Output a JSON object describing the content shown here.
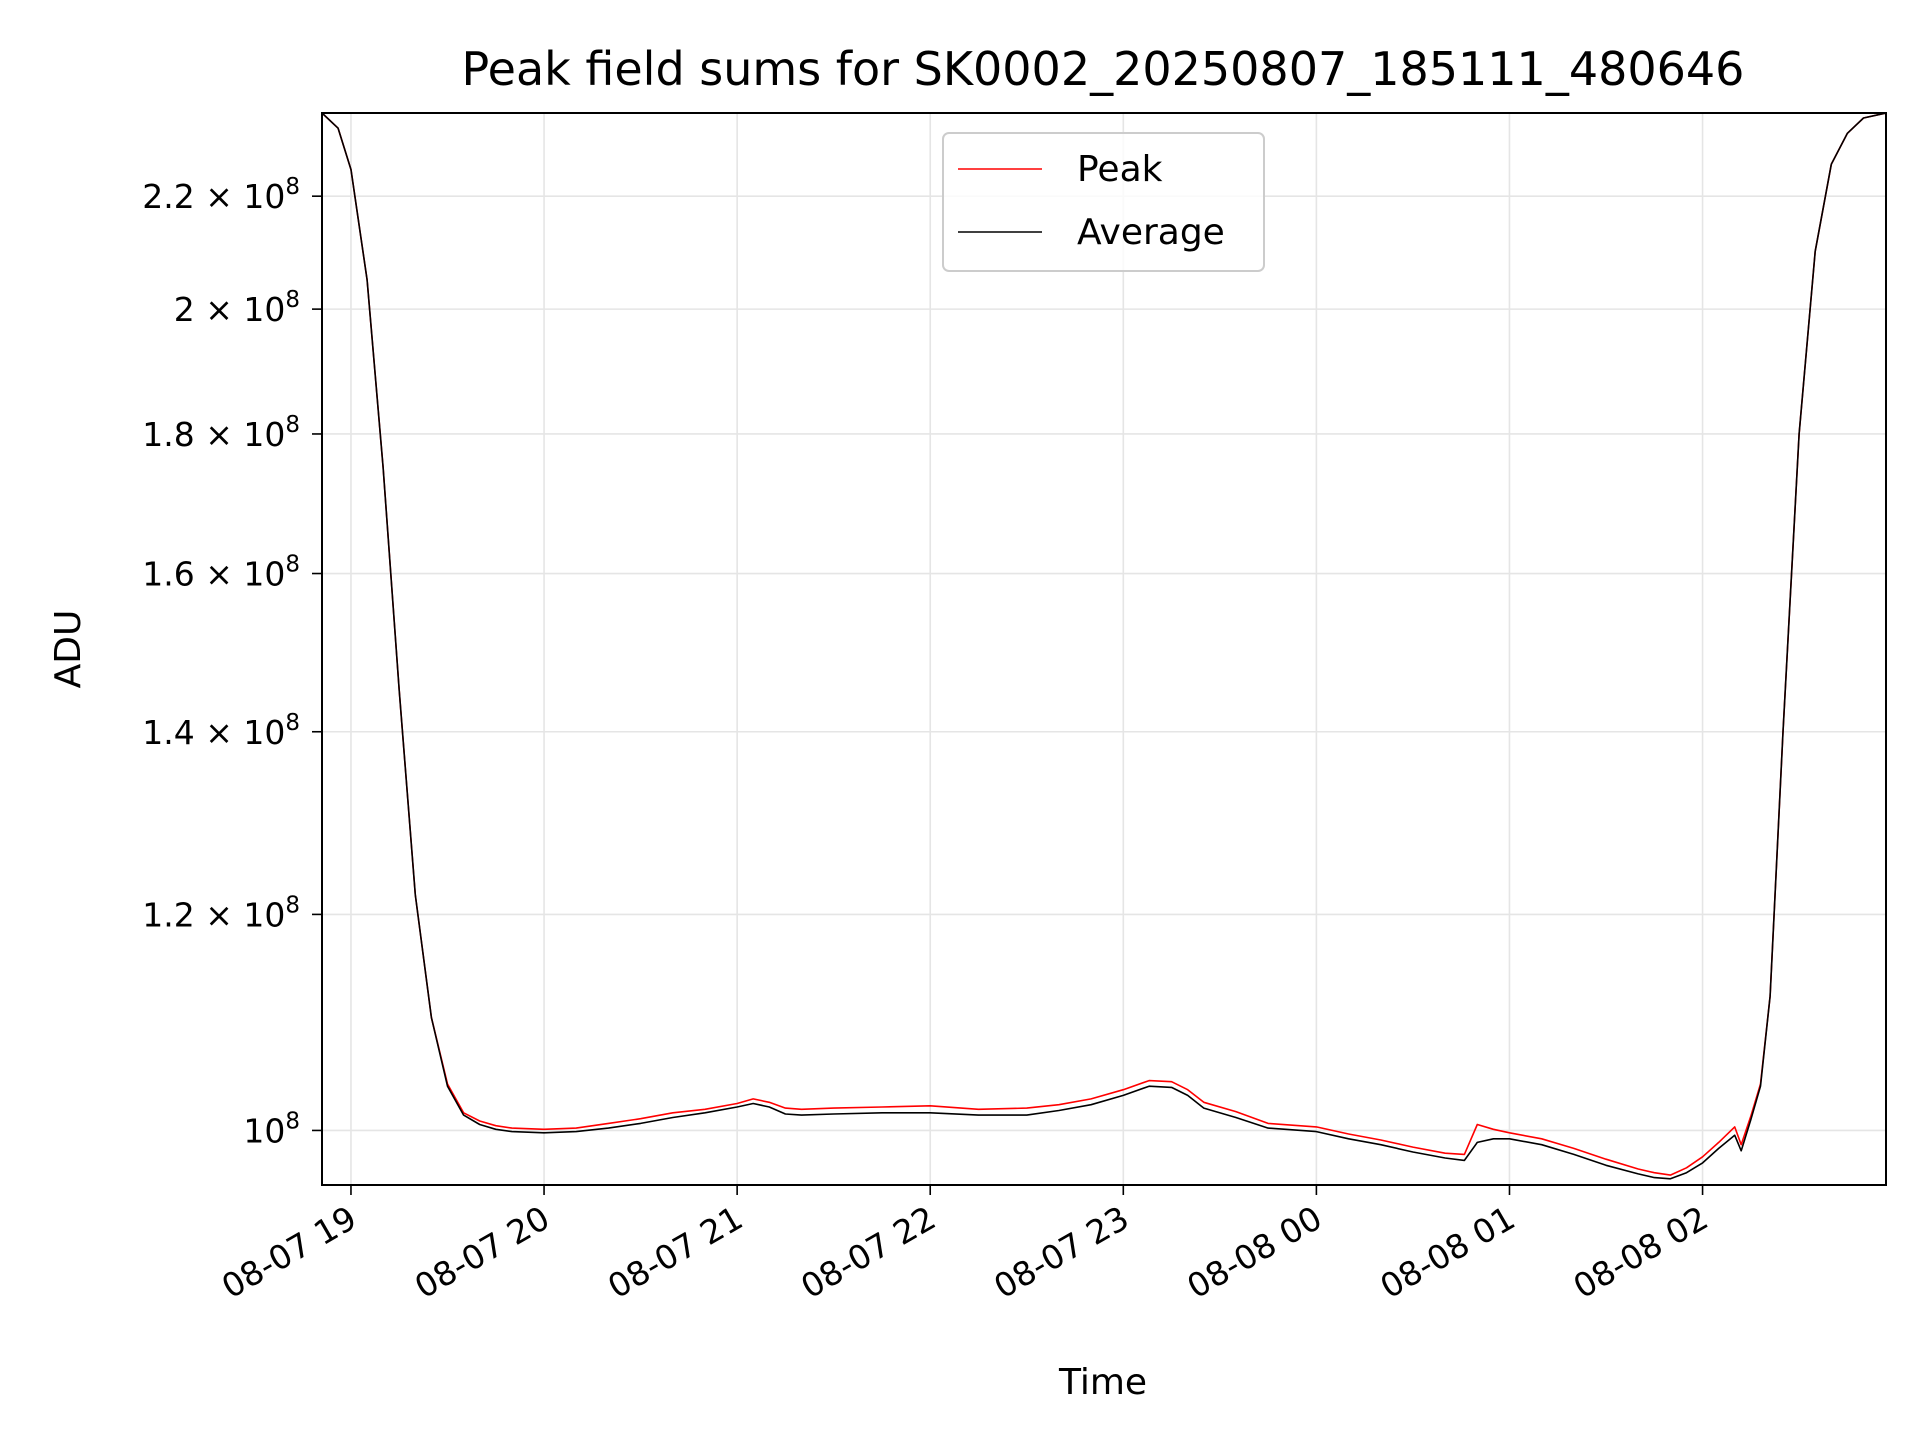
{
  "chart_data": {
    "type": "line",
    "title": "Peak field sums for SK0002_20250807_185111_480646",
    "xlabel": "Time",
    "ylabel": "ADU",
    "x_range": [
      "2025-08-07 18:51",
      "2025-08-08 02:57"
    ],
    "ylim": [
      95500000,
      236000000
    ],
    "y_scale": "log",
    "grid": true,
    "legend_position": "upper center",
    "x_ticks": [
      {
        "time": "2025-08-07 19:00",
        "label": "08-07 19"
      },
      {
        "time": "2025-08-07 20:00",
        "label": "08-07 20"
      },
      {
        "time": "2025-08-07 21:00",
        "label": "08-07 21"
      },
      {
        "time": "2025-08-07 22:00",
        "label": "08-07 22"
      },
      {
        "time": "2025-08-07 23:00",
        "label": "08-07 23"
      },
      {
        "time": "2025-08-08 00:00",
        "label": "08-08 00"
      },
      {
        "time": "2025-08-08 01:00",
        "label": "08-08 01"
      },
      {
        "time": "2025-08-08 02:00",
        "label": "08-08 02"
      }
    ],
    "y_ticks": [
      {
        "value": 100000000,
        "mantissa": "",
        "exponent": "8"
      },
      {
        "value": 120000000,
        "mantissa": "1.2",
        "exponent": "8"
      },
      {
        "value": 140000000,
        "mantissa": "1.4",
        "exponent": "8"
      },
      {
        "value": 160000000,
        "mantissa": "1.6",
        "exponent": "8"
      },
      {
        "value": 180000000,
        "mantissa": "1.8",
        "exponent": "8"
      },
      {
        "value": 200000000,
        "mantissa": "2",
        "exponent": "8"
      },
      {
        "value": 220000000,
        "mantissa": "2.2",
        "exponent": "8"
      }
    ],
    "series": [
      {
        "name": "Peak",
        "color": "#ff0000",
        "x": [
          "2025-08-07 18:51",
          "2025-08-07 18:56",
          "2025-08-07 19:00",
          "2025-08-07 19:05",
          "2025-08-07 19:10",
          "2025-08-07 19:15",
          "2025-08-07 19:20",
          "2025-08-07 19:25",
          "2025-08-07 19:30",
          "2025-08-07 19:35",
          "2025-08-07 19:40",
          "2025-08-07 19:45",
          "2025-08-07 19:50",
          "2025-08-07 20:00",
          "2025-08-07 20:10",
          "2025-08-07 20:20",
          "2025-08-07 20:30",
          "2025-08-07 20:40",
          "2025-08-07 20:50",
          "2025-08-07 21:00",
          "2025-08-07 21:05",
          "2025-08-07 21:10",
          "2025-08-07 21:15",
          "2025-08-07 21:20",
          "2025-08-07 21:30",
          "2025-08-07 21:45",
          "2025-08-07 22:00",
          "2025-08-07 22:15",
          "2025-08-07 22:30",
          "2025-08-07 22:40",
          "2025-08-07 22:50",
          "2025-08-07 23:00",
          "2025-08-07 23:08",
          "2025-08-07 23:15",
          "2025-08-07 23:20",
          "2025-08-07 23:25",
          "2025-08-07 23:35",
          "2025-08-07 23:45",
          "2025-08-08 00:00",
          "2025-08-08 00:10",
          "2025-08-08 00:20",
          "2025-08-08 00:30",
          "2025-08-08 00:40",
          "2025-08-08 00:46",
          "2025-08-08 00:50",
          "2025-08-08 00:55",
          "2025-08-08 01:00",
          "2025-08-08 01:10",
          "2025-08-08 01:20",
          "2025-08-08 01:30",
          "2025-08-08 01:40",
          "2025-08-08 01:45",
          "2025-08-08 01:50",
          "2025-08-08 01:55",
          "2025-08-08 02:00",
          "2025-08-08 02:05",
          "2025-08-08 02:10",
          "2025-08-08 02:12",
          "2025-08-08 02:15",
          "2025-08-08 02:18",
          "2025-08-08 02:21",
          "2025-08-08 02:25",
          "2025-08-08 02:30",
          "2025-08-08 02:35",
          "2025-08-08 02:40",
          "2025-08-08 02:45",
          "2025-08-08 02:50",
          "2025-08-08 02:57"
        ],
        "values": [
          236000000,
          233000000,
          225000000,
          205000000,
          175000000,
          145000000,
          122000000,
          110000000,
          104000000,
          101500000,
          100800000,
          100400000,
          100200000,
          100100000,
          100200000,
          100600000,
          101000000,
          101500000,
          101800000,
          102300000,
          102700000,
          102400000,
          101900000,
          101800000,
          101900000,
          102000000,
          102100000,
          101800000,
          101900000,
          102200000,
          102700000,
          103500000,
          104300000,
          104200000,
          103500000,
          102400000,
          101600000,
          100600000,
          100300000,
          99700000,
          99200000,
          98600000,
          98100000,
          98000000,
          100500000,
          100100000,
          99800000,
          99300000,
          98500000,
          97600000,
          96800000,
          96500000,
          96300000,
          96900000,
          97800000,
          99000000,
          100300000,
          98800000,
          101200000,
          104000000,
          112000000,
          140000000,
          180000000,
          210000000,
          226000000,
          232000000,
          235000000,
          236000000
        ]
      },
      {
        "name": "Average",
        "color": "#000000",
        "x": [
          "2025-08-07 18:51",
          "2025-08-07 18:56",
          "2025-08-07 19:00",
          "2025-08-07 19:05",
          "2025-08-07 19:10",
          "2025-08-07 19:15",
          "2025-08-07 19:20",
          "2025-08-07 19:25",
          "2025-08-07 19:30",
          "2025-08-07 19:35",
          "2025-08-07 19:40",
          "2025-08-07 19:45",
          "2025-08-07 19:50",
          "2025-08-07 20:00",
          "2025-08-07 20:10",
          "2025-08-07 20:20",
          "2025-08-07 20:30",
          "2025-08-07 20:40",
          "2025-08-07 20:50",
          "2025-08-07 21:00",
          "2025-08-07 21:05",
          "2025-08-07 21:10",
          "2025-08-07 21:15",
          "2025-08-07 21:20",
          "2025-08-07 21:30",
          "2025-08-07 21:45",
          "2025-08-07 22:00",
          "2025-08-07 22:15",
          "2025-08-07 22:30",
          "2025-08-07 22:40",
          "2025-08-07 22:50",
          "2025-08-07 23:00",
          "2025-08-07 23:08",
          "2025-08-07 23:15",
          "2025-08-07 23:20",
          "2025-08-07 23:25",
          "2025-08-07 23:35",
          "2025-08-07 23:45",
          "2025-08-08 00:00",
          "2025-08-08 00:10",
          "2025-08-08 00:20",
          "2025-08-08 00:30",
          "2025-08-08 00:40",
          "2025-08-08 00:46",
          "2025-08-08 00:50",
          "2025-08-08 00:55",
          "2025-08-08 01:00",
          "2025-08-08 01:10",
          "2025-08-08 01:20",
          "2025-08-08 01:30",
          "2025-08-08 01:40",
          "2025-08-08 01:45",
          "2025-08-08 01:50",
          "2025-08-08 01:55",
          "2025-08-08 02:00",
          "2025-08-08 02:05",
          "2025-08-08 02:10",
          "2025-08-08 02:12",
          "2025-08-08 02:15",
          "2025-08-08 02:18",
          "2025-08-08 02:21",
          "2025-08-08 02:25",
          "2025-08-08 02:30",
          "2025-08-08 02:35",
          "2025-08-08 02:40",
          "2025-08-08 02:45",
          "2025-08-08 02:50",
          "2025-08-08 02:57"
        ],
        "values": [
          236000000,
          233000000,
          225000000,
          205000000,
          175000000,
          145000000,
          122000000,
          110000000,
          103800000,
          101300000,
          100500000,
          100100000,
          99900000,
          99800000,
          99900000,
          100200000,
          100600000,
          101100000,
          101500000,
          102000000,
          102300000,
          102000000,
          101400000,
          101300000,
          101400000,
          101500000,
          101500000,
          101300000,
          101300000,
          101700000,
          102200000,
          103000000,
          103800000,
          103700000,
          103000000,
          101900000,
          101100000,
          100200000,
          99900000,
          99300000,
          98800000,
          98200000,
          97700000,
          97500000,
          99000000,
          99300000,
          99300000,
          98800000,
          98000000,
          97100000,
          96400000,
          96100000,
          96000000,
          96500000,
          97300000,
          98500000,
          99600000,
          98300000,
          100900000,
          103800000,
          112000000,
          140000000,
          180000000,
          210000000,
          226000000,
          232000000,
          235000000,
          236000000
        ]
      }
    ]
  }
}
